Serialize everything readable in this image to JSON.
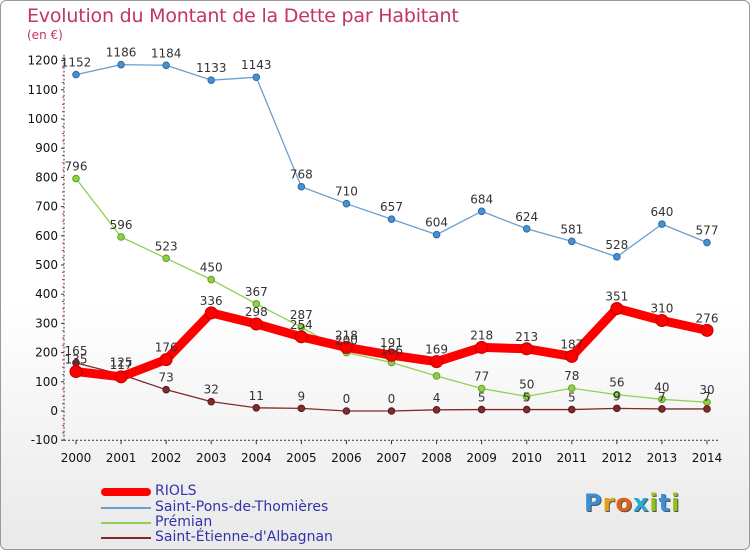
{
  "title": "Evolution du Montant de la Dette par Habitant",
  "subtitle": "(en €)",
  "logo": {
    "letters": [
      "P",
      "r",
      "o",
      "x",
      "i",
      "t",
      "i"
    ],
    "colors": [
      "#3a8fd6",
      "#e0a21a",
      "#e0601a",
      "#2aa8d8",
      "#8fc21e",
      "#3a8fd6",
      "#8fc21e"
    ]
  },
  "chart_data": {
    "type": "line",
    "x": [
      2000,
      2001,
      2002,
      2003,
      2004,
      2005,
      2006,
      2007,
      2008,
      2009,
      2010,
      2011,
      2012,
      2013,
      2014
    ],
    "xticks": [
      "2000",
      "2001",
      "2002",
      "2003",
      "2004",
      "2005",
      "2006",
      "2007",
      "2008",
      "2009",
      "2010",
      "2011",
      "2012",
      "2013",
      "2014"
    ],
    "ylim": [
      -100,
      1200
    ],
    "yticks": [
      -100,
      0,
      100,
      200,
      300,
      400,
      500,
      600,
      700,
      800,
      900,
      1000,
      1100,
      1200
    ],
    "grid": false,
    "legend_position": "bottom-left",
    "series": [
      {
        "name": "Saint-Pons-de-Thomières",
        "color": "#6a9fd0",
        "values": [
          1152,
          1186,
          1184,
          1133,
          1143,
          768,
          710,
          657,
          604,
          684,
          624,
          581,
          528,
          640,
          577
        ]
      },
      {
        "name": "Prémian",
        "color": "#92d050",
        "values": [
          796,
          596,
          523,
          450,
          367,
          287,
          200,
          166,
          120,
          77,
          50,
          78,
          56,
          40,
          30
        ]
      },
      {
        "name": "Saint-Étienne-d'Albagnan",
        "color": "#7f2b2b",
        "values": [
          165,
          125,
          73,
          32,
          11,
          9,
          0,
          0,
          4,
          5,
          5,
          5,
          9,
          7,
          7
        ]
      },
      {
        "name": "RIOLS",
        "color": "#ff0000",
        "values": [
          135,
          117,
          176,
          336,
          298,
          254,
          218,
          191,
          169,
          218,
          213,
          187,
          351,
          310,
          276
        ]
      }
    ],
    "data_labels": [
      {
        "series": 0,
        "labels": [
          "1152",
          "1186",
          "1184",
          "1133",
          "1143",
          "768",
          "710",
          "657",
          "604",
          "684",
          "624",
          "581",
          "528",
          "640",
          "577"
        ]
      },
      {
        "series": 1,
        "labels": [
          "796",
          "596",
          "523",
          "450",
          "367",
          "287",
          "200",
          "166",
          "",
          "77",
          "50",
          "78",
          "56",
          "40",
          "30"
        ]
      },
      {
        "series": 2,
        "labels": [
          "165",
          "125",
          "73",
          "32",
          "11",
          "9",
          "0",
          "0",
          "4",
          "5",
          "5",
          "5",
          "9",
          "7",
          "7"
        ]
      },
      {
        "series": 3,
        "labels": [
          "135",
          "117",
          "176",
          "336",
          "298",
          "254",
          "218",
          "191",
          "169",
          "218",
          "213",
          "187",
          "351",
          "310",
          "276"
        ]
      }
    ]
  },
  "legend": [
    {
      "label": "RIOLS",
      "color": "#ff0000",
      "thickness": 8
    },
    {
      "label": "Saint-Pons-de-Thomières",
      "color": "#6a9fd0",
      "thickness": 2
    },
    {
      "label": "Prémian",
      "color": "#92d050",
      "thickness": 2
    },
    {
      "label": "Saint-Étienne-d'Albagnan",
      "color": "#7f2b2b",
      "thickness": 2
    }
  ]
}
